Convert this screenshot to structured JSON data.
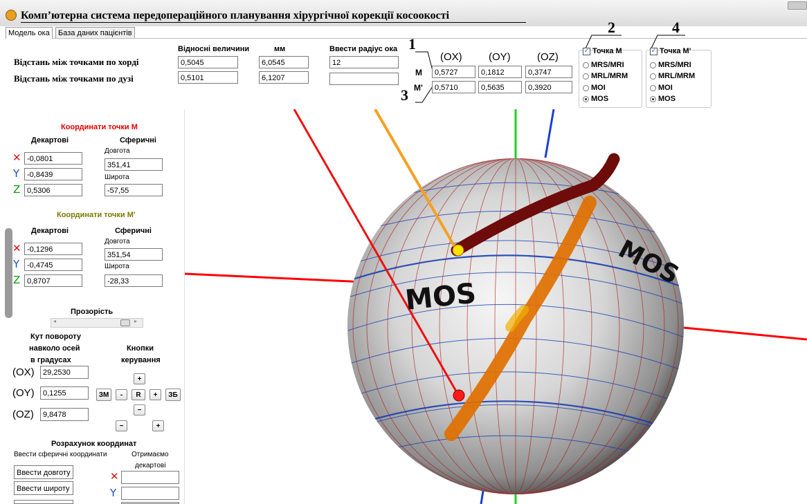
{
  "window": {
    "title": "Комп’ютерна система передопераційного планування хірургічної корекції косоокості"
  },
  "tabs": [
    {
      "label": "Модель ока"
    },
    {
      "label": "База даних пацієнтів"
    }
  ],
  "top": {
    "row_chord_label": "Відстань між точками по хорді",
    "row_arc_label": "Відстань між точками по дузі",
    "col_relative": "Відносні величини",
    "col_mm": "мм",
    "col_radius": "Ввести радіус ока",
    "chord_relative": "0,5045",
    "chord_mm": "6,0545",
    "arc_relative": "0,5101",
    "arc_mm": "6,1207",
    "radius_value": "12",
    "radius_second": "",
    "coord_headers": [
      "(OX)",
      "(OY)",
      "(OZ)"
    ],
    "row_M_label": "M",
    "row_M2_label": "M'",
    "M_values": [
      "0,5727",
      "0,1812",
      "0,3747"
    ],
    "M2_values": [
      "0,5710",
      "0,5635",
      "0,3920"
    ],
    "markers": [
      "1",
      "2",
      "3",
      "4"
    ]
  },
  "groups": [
    {
      "title": "Точка M",
      "checked": true,
      "options": [
        "MRS/MRI",
        "MRL/MRM",
        "MOI",
        "MOS"
      ],
      "selected": "MOS"
    },
    {
      "title": "Точка M'",
      "checked": true,
      "options": [
        "MRS/MRI",
        "MRL/MRM",
        "MOI",
        "MOS"
      ],
      "selected": "MOS"
    }
  ],
  "left": {
    "pointM_title": "Координати точки M",
    "pointM2_title": "Координати точки M'",
    "cart_label": "Декартові",
    "sph_label": "Сферичні",
    "lon_label": "Довгота",
    "lat_label": "Широта",
    "axis_x": "✕",
    "axis_y": "Y",
    "axis_z": "Z",
    "M": {
      "x": "-0,0801",
      "y": "-0,8439",
      "z": "0,5306",
      "lon": "351,41",
      "lat": "-57,55"
    },
    "M2": {
      "x": "-0,1296",
      "y": "-0,4745",
      "z": "0,8707",
      "lon": "351,54",
      "lat": "-28,33"
    },
    "transparency_label": "Прозорість",
    "rotation_label_1": "Кут повороту",
    "rotation_label_2": "навколо осей",
    "rotation_label_3": "в градусах",
    "buttons_label_1": "Кнопки",
    "buttons_label_2": "керування",
    "ox_label": "(OX)",
    "oy_label": "(OY)",
    "oz_label": "(OZ)",
    "ox_value": "29,2530",
    "oy_value": "0,1255",
    "oz_value": "9,8478",
    "btn_plus": "+",
    "btn_minus": "−",
    "btn_minus_small": "-",
    "btn_R": "R",
    "btn_ZM": "ЗМ",
    "btn_ZB": "ЗБ",
    "calc_title": "Розрахунок координат",
    "calc_enter": "Ввести сферичні координати",
    "calc_get_1": "Отримаємо",
    "calc_get_2": "декартові",
    "lon_button": "Ввести довготу",
    "lat_button": "Ввести широту"
  },
  "view": {
    "label_left": "MOS",
    "label_right": "MOS"
  },
  "colors": {
    "red": "#e00000",
    "olive": "#7a7a00",
    "x_axis": "#ff0000",
    "y_axis": "#1a3fd6",
    "z_axis": "#1ad41a",
    "path_dark": "#6e0b0b",
    "path_orange": "#e07000"
  }
}
